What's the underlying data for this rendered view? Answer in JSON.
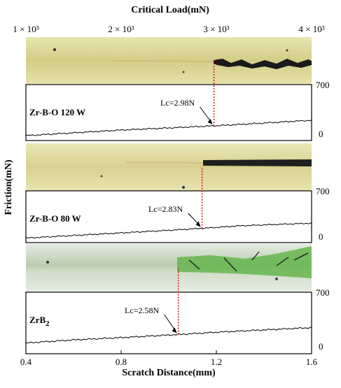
{
  "figure": {
    "top_title": "Critical Load(mN)",
    "top_ticks": [
      "1 × 10³",
      "2 × 10³",
      "3 × 10³",
      "4 × 10³"
    ],
    "bottom_title": "Scratch Distance(mm)",
    "bottom_ticks": [
      "0.4",
      "0.8",
      "1.2",
      "1.6"
    ],
    "left_title": "Friction(mN)"
  },
  "chart_data": {
    "type": "line",
    "x_top_axis": {
      "label": "Critical Load(mN)",
      "range": [
        1000,
        4000
      ]
    },
    "x_bottom_axis": {
      "label": "Scratch Distance(mm)",
      "range": [
        0.4,
        1.6
      ]
    },
    "panels": [
      {
        "name": "Zr-B-O 120 W",
        "ylabel": "Friction(mN)",
        "y_ticks": [
          "700",
          "0"
        ],
        "ylim": [
          -100,
          700
        ],
        "annotation": "Lc=2.98N",
        "critical_x": 1.19,
        "x": [
          0.4,
          0.6,
          0.8,
          1.0,
          1.19,
          1.4,
          1.6
        ],
        "y": [
          -30,
          10,
          50,
          80,
          110,
          150,
          190
        ],
        "image_tint": "#dcd896",
        "scratch_color": "#1a1a1a"
      },
      {
        "name": "Zr-B-O 80 W",
        "ylabel": "Friction(mN)",
        "y_ticks": [
          "700",
          "0"
        ],
        "ylim": [
          -100,
          700
        ],
        "annotation": "Lc=2.83N",
        "critical_x": 1.14,
        "x": [
          0.4,
          0.6,
          0.8,
          1.0,
          1.14,
          1.3,
          1.6
        ],
        "y": [
          -30,
          10,
          50,
          90,
          120,
          160,
          200
        ],
        "image_tint": "#e0db9e",
        "scratch_color": "#1a1a1a"
      },
      {
        "name": "ZrB",
        "name_subscript": "2",
        "ylabel": "Friction(mN)",
        "y_ticks": [
          "700",
          "0"
        ],
        "ylim": [
          -100,
          700
        ],
        "annotation": "Lc=2.58N",
        "critical_x": 1.04,
        "x": [
          0.4,
          0.6,
          0.8,
          1.04,
          1.2,
          1.4,
          1.6
        ],
        "y": [
          40,
          80,
          110,
          150,
          180,
          210,
          240
        ],
        "image_tint": "#c9d8b8",
        "scratch_color": "#5fb04a"
      }
    ]
  }
}
